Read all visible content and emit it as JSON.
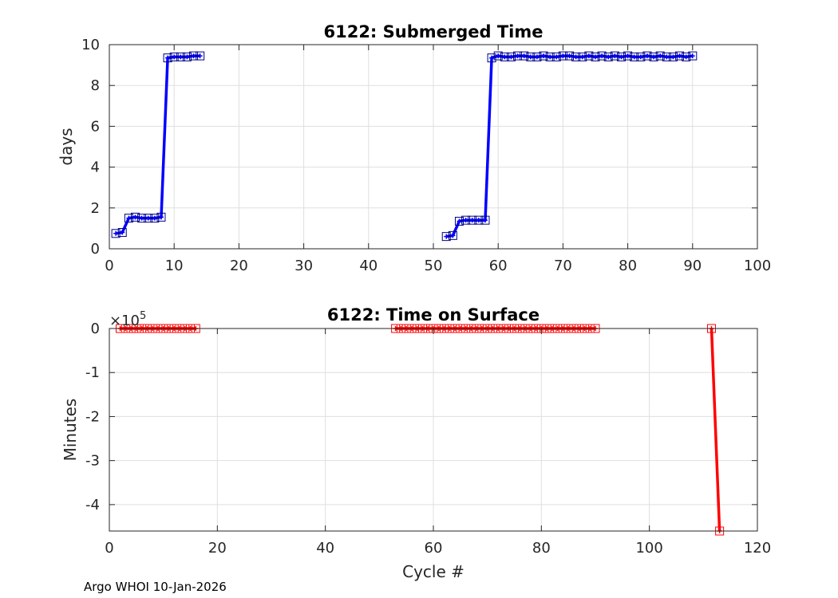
{
  "footer": "Argo WHOI 10-Jan-2026",
  "chart_data": [
    {
      "type": "line",
      "title": "6122: Submerged Time",
      "xlabel": "",
      "ylabel": "days",
      "xlim": [
        0,
        100
      ],
      "ylim": [
        0,
        10
      ],
      "xticks": [
        0,
        10,
        20,
        30,
        40,
        50,
        60,
        70,
        80,
        90,
        100
      ],
      "yticks": [
        0,
        2,
        4,
        6,
        8,
        10
      ],
      "xtick_labels": [
        "0",
        "10",
        "20",
        "30",
        "40",
        "50",
        "60",
        "70",
        "80",
        "90",
        "100"
      ],
      "ytick_labels": [
        "0",
        "2",
        "4",
        "6",
        "8",
        "10"
      ],
      "grid": true,
      "color": "#0000ff",
      "marker_color": "#00007f",
      "series": [
        {
          "segments": [
            {
              "x": [
                1,
                2,
                3,
                4,
                5,
                6,
                7,
                8,
                9,
                10,
                11,
                12,
                13,
                14
              ],
              "y": [
                0.75,
                0.8,
                1.5,
                1.55,
                1.5,
                1.5,
                1.5,
                1.55,
                9.35,
                9.4,
                9.4,
                9.4,
                9.45,
                9.45
              ]
            },
            {
              "x": [
                52,
                53,
                54,
                55,
                56,
                57,
                58,
                59,
                60,
                61,
                62,
                63,
                64,
                65,
                66,
                67,
                68,
                69,
                70,
                71,
                72,
                73,
                74,
                75,
                76,
                77,
                78,
                79,
                80,
                81,
                82,
                83,
                84,
                85,
                86,
                87,
                88,
                89,
                90
              ],
              "y": [
                0.6,
                0.65,
                1.35,
                1.4,
                1.4,
                1.4,
                1.4,
                9.35,
                9.45,
                9.4,
                9.4,
                9.45,
                9.45,
                9.4,
                9.4,
                9.45,
                9.4,
                9.4,
                9.45,
                9.45,
                9.4,
                9.4,
                9.45,
                9.4,
                9.45,
                9.4,
                9.45,
                9.4,
                9.45,
                9.4,
                9.4,
                9.45,
                9.4,
                9.45,
                9.4,
                9.4,
                9.45,
                9.4,
                9.45
              ]
            }
          ]
        }
      ]
    },
    {
      "type": "line",
      "title": "6122: Time on Surface",
      "xlabel": "Cycle #",
      "ylabel": "Minutes",
      "exponent_label": "×10",
      "exponent_power": "5",
      "exponent": 100000,
      "xlim": [
        0,
        120
      ],
      "ylim": [
        -4.6,
        0
      ],
      "xticks": [
        0,
        20,
        40,
        60,
        80,
        100,
        120
      ],
      "yticks": [
        0,
        -1,
        -2,
        -3,
        -4
      ],
      "xtick_labels": [
        "0",
        "20",
        "40",
        "60",
        "80",
        "100",
        "120"
      ],
      "ytick_labels": [
        "0",
        "-1",
        "-2",
        "-3",
        "-4"
      ],
      "grid": true,
      "color": "#ff0000",
      "marker_color": "#ff0000",
      "series": [
        {
          "segments": [
            {
              "x": [
                2,
                3,
                4,
                5,
                6,
                7,
                8,
                9,
                10,
                11,
                12,
                13,
                14,
                15,
                16
              ],
              "y": [
                0,
                0,
                0,
                0,
                0,
                0,
                0,
                0,
                0,
                0,
                0,
                0,
                0,
                0,
                0
              ]
            },
            {
              "x": [
                53,
                54,
                55,
                56,
                57,
                58,
                59,
                60,
                61,
                62,
                63,
                64,
                65,
                66,
                67,
                68,
                69,
                70,
                71,
                72,
                73,
                74,
                75,
                76,
                77,
                78,
                79,
                80,
                81,
                82,
                83,
                84,
                85,
                86,
                87,
                88,
                89,
                90
              ],
              "y": [
                0,
                0,
                0,
                0,
                0,
                0,
                0,
                0,
                0,
                0,
                0,
                0,
                0,
                0,
                0,
                0,
                0,
                0,
                0,
                0,
                0,
                0,
                0,
                0,
                0,
                0,
                0,
                0,
                0,
                0,
                0,
                0,
                0,
                0,
                0,
                0,
                0,
                0
              ]
            },
            {
              "x": [
                111.5,
                113
              ],
              "y": [
                0,
                -4.6
              ]
            }
          ]
        }
      ]
    }
  ]
}
